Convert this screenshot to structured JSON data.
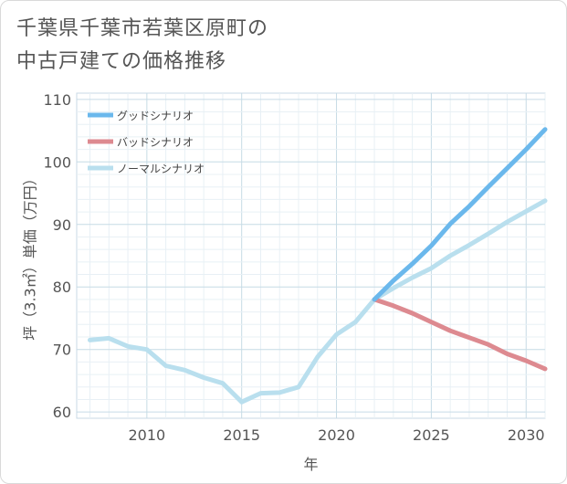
{
  "title": {
    "line1": "千葉県千葉市若葉区原町の",
    "line2": "中古戸建ての価格推移"
  },
  "chart_data": {
    "type": "line",
    "title": "千葉県千葉市若葉区原町の中古戸建ての価格推移",
    "xlabel": "年",
    "ylabel": "坪（3.3㎡）単価（万円）",
    "xlim": [
      2006.3,
      2031
    ],
    "ylim": [
      59,
      111
    ],
    "xticks": [
      2010,
      2015,
      2020,
      2025,
      2030
    ],
    "yticks": [
      60,
      70,
      80,
      90,
      100,
      110
    ],
    "grid": true,
    "legend_position": "top-left",
    "series": [
      {
        "name": "グッドシナリオ",
        "color": "#6bb8ec",
        "x": [
          2022,
          2023,
          2024,
          2025,
          2026,
          2027,
          2028,
          2029,
          2030,
          2031
        ],
        "y": [
          78,
          81,
          83.7,
          86.6,
          90.1,
          92.9,
          96,
          99,
          102,
          105.2
        ]
      },
      {
        "name": "バッドシナリオ",
        "color": "#dd8a90",
        "x": [
          2022,
          2023,
          2024,
          2025,
          2026,
          2027,
          2028,
          2029,
          2030,
          2031
        ],
        "y": [
          78,
          77,
          75.8,
          74.4,
          73,
          71.9,
          70.8,
          69.3,
          68.2,
          66.9
        ]
      },
      {
        "name": "ノーマルシナリオ",
        "color": "#b9dfee",
        "x": [
          2007,
          2008,
          2009,
          2010,
          2011,
          2012,
          2013,
          2014,
          2015,
          2016,
          2017,
          2018,
          2019,
          2020,
          2021,
          2022,
          2023,
          2024,
          2025,
          2026,
          2027,
          2028,
          2029,
          2030,
          2031
        ],
        "y": [
          71.5,
          71.8,
          70.5,
          70,
          67.4,
          66.7,
          65.5,
          64.6,
          61.6,
          63,
          63.1,
          64,
          68.8,
          72.4,
          74.4,
          78,
          79.8,
          81.5,
          83,
          85,
          86.7,
          88.5,
          90.4,
          92.1,
          93.8
        ]
      }
    ]
  }
}
